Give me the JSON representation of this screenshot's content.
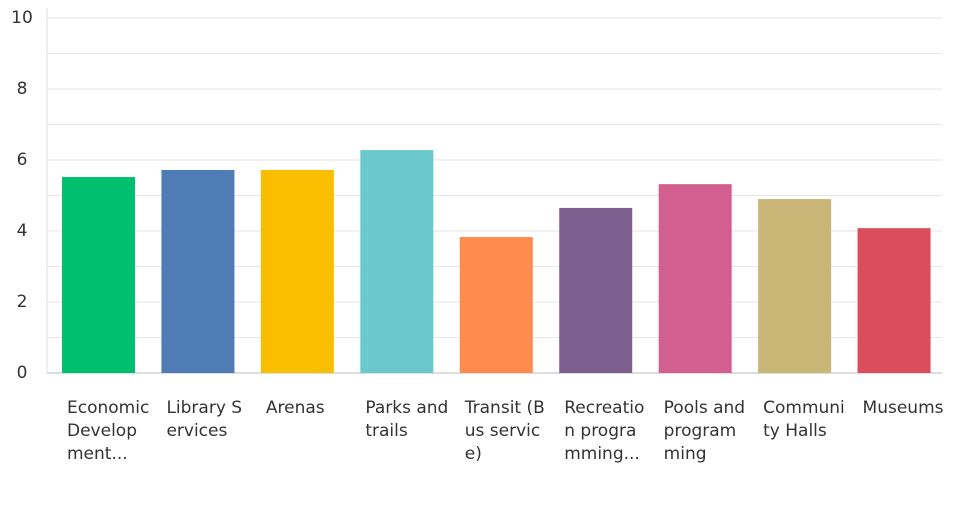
{
  "chart_data": {
    "type": "bar",
    "categories": [
      "Economic Development...",
      "Library Services",
      "Arenas",
      "Parks and trails",
      "Transit (Bus service)",
      "Recreation programming...",
      "Pools and programming",
      "Community Halls",
      "Museums"
    ],
    "values": [
      5.52,
      5.72,
      5.72,
      6.28,
      3.83,
      4.65,
      5.32,
      4.9,
      4.08
    ],
    "colors": [
      "#00bf6f",
      "#507cb6",
      "#f9be00",
      "#6bc8cd",
      "#ff8b4f",
      "#7f5f90",
      "#d25f90",
      "#c9b677",
      "#db4d5c"
    ],
    "ylim": [
      0,
      10
    ],
    "yticks": [
      0,
      2,
      4,
      6,
      8,
      10
    ],
    "minor_yticks": [
      1,
      3,
      5,
      7,
      9
    ],
    "grid": true
  }
}
